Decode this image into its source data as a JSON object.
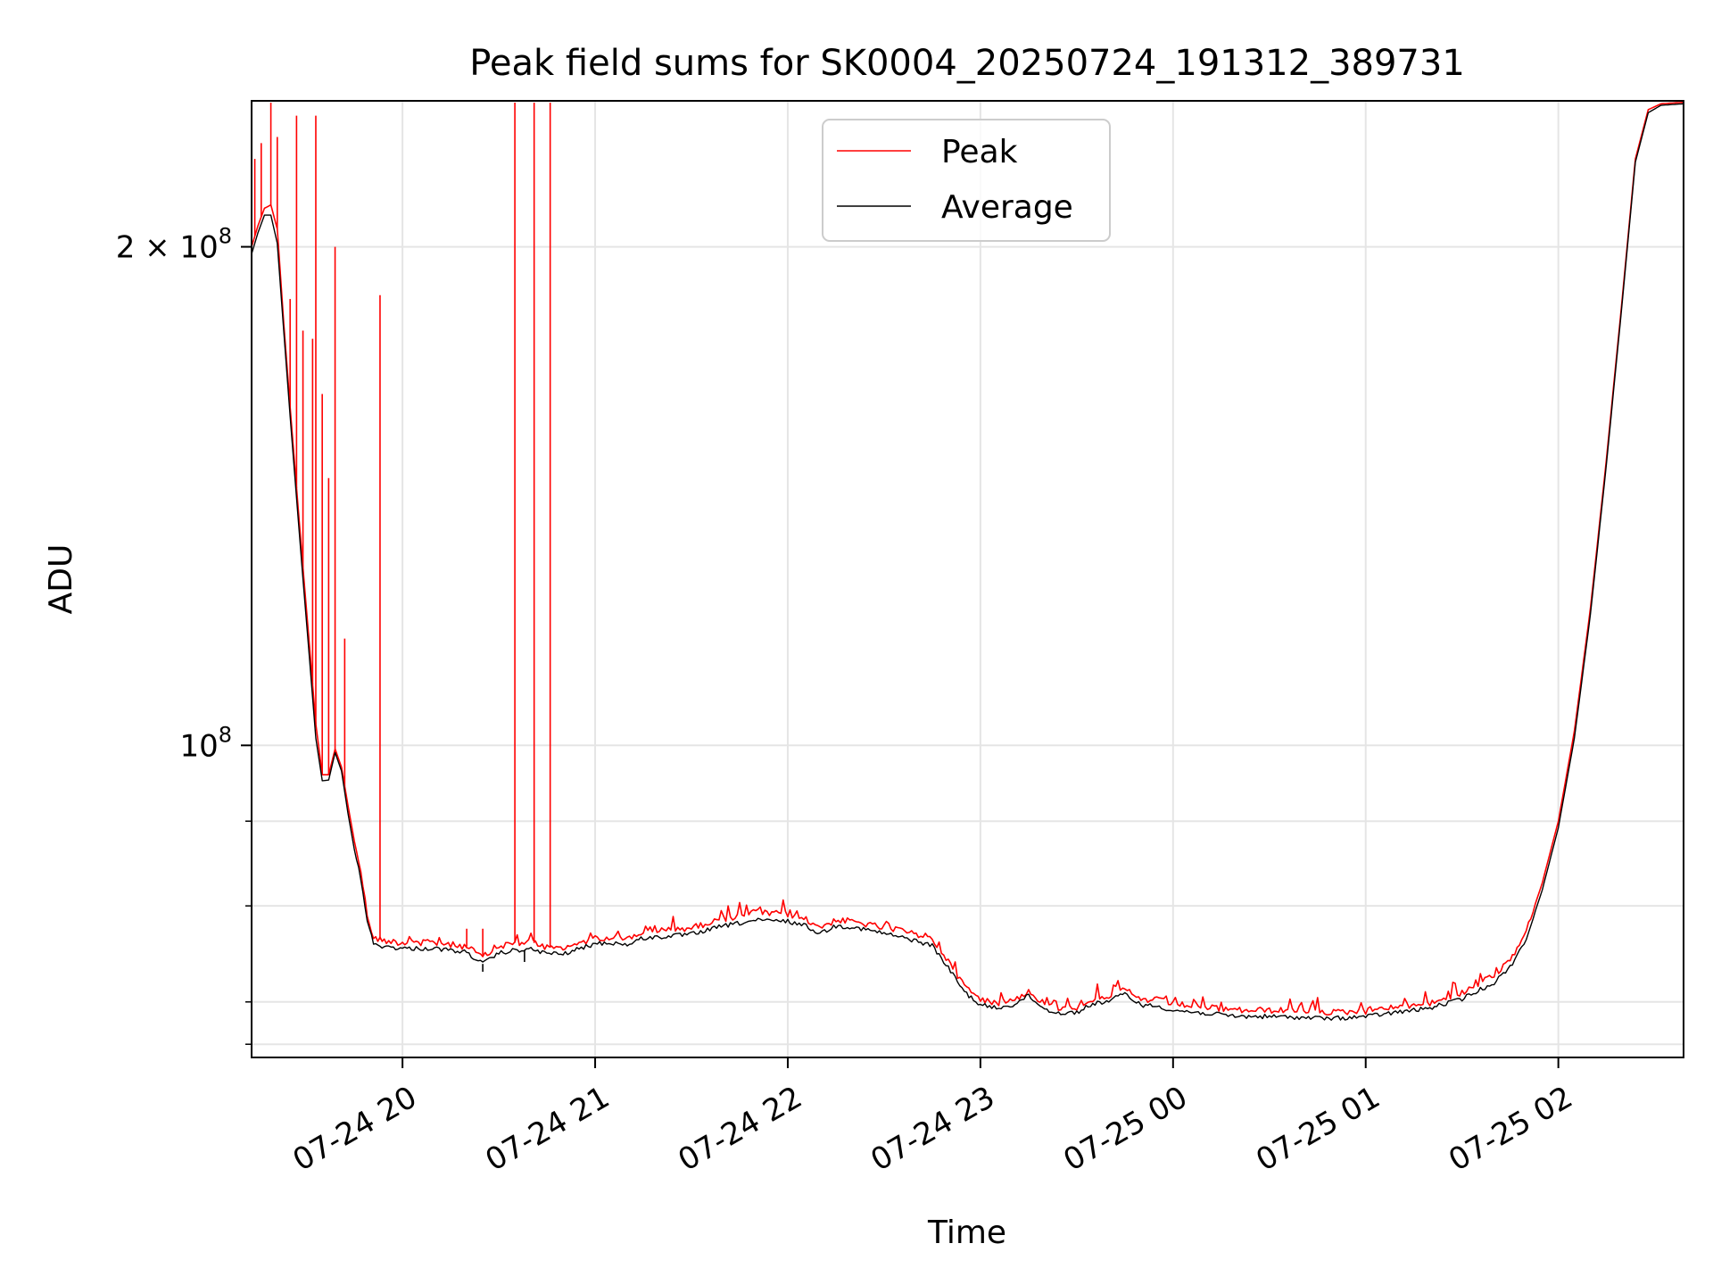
{
  "chart_data": {
    "type": "line",
    "title": "Peak field sums for SK0004_20250724_191312_389731",
    "xlabel": "Time",
    "ylabel": "ADU",
    "yscale": "log",
    "xlim": [
      "2025-07-24 19:13",
      "2025-07-25 02:39"
    ],
    "ylim": [
      64800000,
      245000000
    ],
    "grid": true,
    "legend_position": "upper-center",
    "x_ticks": [
      {
        "value": "2025-07-24 20:00",
        "label": "07-24 20"
      },
      {
        "value": "2025-07-24 21:00",
        "label": "07-24 21"
      },
      {
        "value": "2025-07-24 22:00",
        "label": "07-24 22"
      },
      {
        "value": "2025-07-24 23:00",
        "label": "07-24 23"
      },
      {
        "value": "2025-07-25 00:00",
        "label": "07-25 00"
      },
      {
        "value": "2025-07-25 01:00",
        "label": "07-25 01"
      },
      {
        "value": "2025-07-25 02:00",
        "label": "07-25 02"
      }
    ],
    "y_major_ticks": [
      {
        "value": 100000000,
        "label_base": "10",
        "label_exp": "8"
      },
      {
        "value": 200000000,
        "label_base": "2 × 10",
        "label_exp": "8"
      }
    ],
    "y_minor_ticks": [
      66000000,
      70000000,
      80000000,
      90000000
    ],
    "series": [
      {
        "name": "Peak",
        "color": "#ff0000",
        "points": [
          [
            "2025-07-24 19:13",
            200000000
          ],
          [
            "2025-07-24 19:15",
            206000000
          ],
          [
            "2025-07-24 19:17",
            211000000
          ],
          [
            "2025-07-24 19:19",
            212000000
          ],
          [
            "2025-07-24 19:21",
            205000000
          ],
          [
            "2025-07-24 19:23",
            180000000
          ],
          [
            "2025-07-24 19:25",
            160000000
          ],
          [
            "2025-07-24 19:27",
            143000000
          ],
          [
            "2025-07-24 19:29",
            128000000
          ],
          [
            "2025-07-24 19:31",
            115000000
          ],
          [
            "2025-07-24 19:33",
            103000000
          ],
          [
            "2025-07-24 19:35",
            96000000
          ],
          [
            "2025-07-24 19:37",
            96000000
          ],
          [
            "2025-07-24 19:39",
            99500000
          ],
          [
            "2025-07-24 19:41",
            97000000
          ],
          [
            "2025-07-24 19:43",
            92000000
          ],
          [
            "2025-07-24 19:45",
            87500000
          ],
          [
            "2025-07-24 19:47",
            84000000
          ],
          [
            "2025-07-24 19:49",
            79000000
          ],
          [
            "2025-07-24 19:51",
            76500000
          ],
          [
            "2025-07-24 19:55",
            76200000
          ],
          [
            "2025-07-24 20:00",
            76000000
          ],
          [
            "2025-07-24 20:10",
            76000000
          ],
          [
            "2025-07-24 20:20",
            75600000
          ],
          [
            "2025-07-24 20:25",
            74500000
          ],
          [
            "2025-07-24 20:30",
            75600000
          ],
          [
            "2025-07-24 20:35",
            76000000
          ],
          [
            "2025-07-24 20:40",
            76100000
          ],
          [
            "2025-07-24 20:45",
            75500000
          ],
          [
            "2025-07-24 20:50",
            75400000
          ],
          [
            "2025-07-24 21:00",
            76500000
          ],
          [
            "2025-07-24 21:05",
            76600000
          ],
          [
            "2025-07-24 21:10",
            76400000
          ],
          [
            "2025-07-24 21:15",
            77200000
          ],
          [
            "2025-07-24 21:20",
            77300000
          ],
          [
            "2025-07-24 21:30",
            77600000
          ],
          [
            "2025-07-24 21:40",
            78600000
          ],
          [
            "2025-07-24 21:50",
            79200000
          ],
          [
            "2025-07-24 22:00",
            79100000
          ],
          [
            "2025-07-24 22:05",
            78600000
          ],
          [
            "2025-07-24 22:10",
            77700000
          ],
          [
            "2025-07-24 22:15",
            78400000
          ],
          [
            "2025-07-24 22:20",
            78300000
          ],
          [
            "2025-07-24 22:30",
            77600000
          ],
          [
            "2025-07-24 22:40",
            76900000
          ],
          [
            "2025-07-24 22:45",
            76400000
          ],
          [
            "2025-07-24 22:50",
            74100000
          ],
          [
            "2025-07-24 22:55",
            71600000
          ],
          [
            "2025-07-24 23:00",
            70200000
          ],
          [
            "2025-07-24 23:05",
            69900000
          ],
          [
            "2025-07-24 23:10",
            70200000
          ],
          [
            "2025-07-24 23:15",
            71000000
          ],
          [
            "2025-07-24 23:20",
            69800000
          ],
          [
            "2025-07-24 23:25",
            69400000
          ],
          [
            "2025-07-24 23:30",
            69500000
          ],
          [
            "2025-07-24 23:35",
            70300000
          ],
          [
            "2025-07-24 23:40",
            70600000
          ],
          [
            "2025-07-24 23:45",
            71200000
          ],
          [
            "2025-07-24 23:50",
            70200000
          ],
          [
            "2025-07-24 23:55",
            70200000
          ],
          [
            "2025-07-25 00:00",
            69800000
          ],
          [
            "2025-07-25 00:10",
            69500000
          ],
          [
            "2025-07-25 00:20",
            69200000
          ],
          [
            "2025-07-25 00:30",
            69200000
          ],
          [
            "2025-07-25 00:40",
            69100000
          ],
          [
            "2025-07-25 00:50",
            69000000
          ],
          [
            "2025-07-25 01:00",
            69100000
          ],
          [
            "2025-07-25 01:10",
            69500000
          ],
          [
            "2025-07-25 01:20",
            69900000
          ],
          [
            "2025-07-25 01:30",
            70900000
          ],
          [
            "2025-07-25 01:40",
            72600000
          ],
          [
            "2025-07-25 01:45",
            74200000
          ],
          [
            "2025-07-25 01:50",
            77200000
          ],
          [
            "2025-07-25 01:55",
            82600000
          ],
          [
            "2025-07-25 02:00",
            90000000
          ],
          [
            "2025-07-25 02:05",
            102000000
          ],
          [
            "2025-07-25 02:10",
            121000000
          ],
          [
            "2025-07-25 02:15",
            149000000
          ],
          [
            "2025-07-25 02:20",
            187000000
          ],
          [
            "2025-07-25 02:24",
            226000000
          ],
          [
            "2025-07-25 02:28",
            242000000
          ],
          [
            "2025-07-25 02:32",
            244000000
          ],
          [
            "2025-07-25 02:39",
            244500000
          ]
        ],
        "spikes": [
          [
            "2025-07-24 19:14",
            226000000
          ],
          [
            "2025-07-24 19:16",
            231000000
          ],
          [
            "2025-07-24 19:19",
            245000000
          ],
          [
            "2025-07-24 19:21",
            233000000
          ],
          [
            "2025-07-24 19:25",
            186000000
          ],
          [
            "2025-07-24 19:27",
            240000000
          ],
          [
            "2025-07-24 19:29",
            178000000
          ],
          [
            "2025-07-24 19:32",
            176000000
          ],
          [
            "2025-07-24 19:33",
            240000000
          ],
          [
            "2025-07-24 19:35",
            163000000
          ],
          [
            "2025-07-24 19:37",
            145000000
          ],
          [
            "2025-07-24 19:39",
            200000000
          ],
          [
            "2025-07-24 19:42",
            116000000
          ],
          [
            "2025-07-24 19:53",
            187000000
          ],
          [
            "2025-07-24 20:20",
            77500000
          ],
          [
            "2025-07-24 20:25",
            77500000
          ],
          [
            "2025-07-24 20:35",
            245000000
          ],
          [
            "2025-07-24 20:41",
            245000000
          ],
          [
            "2025-07-24 20:46",
            245000000
          ]
        ]
      },
      {
        "name": "Average",
        "color": "#000000",
        "points": [
          [
            "2025-07-24 19:13",
            198000000
          ],
          [
            "2025-07-24 19:15",
            204000000
          ],
          [
            "2025-07-24 19:17",
            209000000
          ],
          [
            "2025-07-24 19:19",
            209000000
          ],
          [
            "2025-07-24 19:21",
            201000000
          ],
          [
            "2025-07-24 19:23",
            178000000
          ],
          [
            "2025-07-24 19:25",
            158000000
          ],
          [
            "2025-07-24 19:27",
            141000000
          ],
          [
            "2025-07-24 19:29",
            126000000
          ],
          [
            "2025-07-24 19:31",
            113000000
          ],
          [
            "2025-07-24 19:33",
            101000000
          ],
          [
            "2025-07-24 19:35",
            95200000
          ],
          [
            "2025-07-24 19:37",
            95300000
          ],
          [
            "2025-07-24 19:39",
            99000000
          ],
          [
            "2025-07-24 19:41",
            96500000
          ],
          [
            "2025-07-24 19:43",
            91000000
          ],
          [
            "2025-07-24 19:45",
            86500000
          ],
          [
            "2025-07-24 19:47",
            83000000
          ],
          [
            "2025-07-24 19:49",
            78500000
          ],
          [
            "2025-07-24 19:51",
            75800000
          ],
          [
            "2025-07-24 19:55",
            75600000
          ],
          [
            "2025-07-24 20:00",
            75400000
          ],
          [
            "2025-07-24 20:10",
            75400000
          ],
          [
            "2025-07-24 20:20",
            75000000
          ],
          [
            "2025-07-24 20:25",
            73800000
          ],
          [
            "2025-07-24 20:30",
            74900000
          ],
          [
            "2025-07-24 20:35",
            75200000
          ],
          [
            "2025-07-24 20:40",
            75300000
          ],
          [
            "2025-07-24 20:45",
            74900000
          ],
          [
            "2025-07-24 20:50",
            74800000
          ],
          [
            "2025-07-24 21:00",
            75900000
          ],
          [
            "2025-07-24 21:05",
            76000000
          ],
          [
            "2025-07-24 21:10",
            75800000
          ],
          [
            "2025-07-24 21:15",
            76500000
          ],
          [
            "2025-07-24 21:20",
            76600000
          ],
          [
            "2025-07-24 21:30",
            76900000
          ],
          [
            "2025-07-24 21:40",
            77800000
          ],
          [
            "2025-07-24 21:50",
            78400000
          ],
          [
            "2025-07-24 22:00",
            78300000
          ],
          [
            "2025-07-24 22:05",
            77900000
          ],
          [
            "2025-07-24 22:10",
            77000000
          ],
          [
            "2025-07-24 22:15",
            77800000
          ],
          [
            "2025-07-24 22:20",
            77700000
          ],
          [
            "2025-07-24 22:30",
            77000000
          ],
          [
            "2025-07-24 22:40",
            76200000
          ],
          [
            "2025-07-24 22:45",
            75700000
          ],
          [
            "2025-07-24 22:50",
            73400000
          ],
          [
            "2025-07-24 22:55",
            71000000
          ],
          [
            "2025-07-24 23:00",
            69700000
          ],
          [
            "2025-07-24 23:05",
            69400000
          ],
          [
            "2025-07-24 23:10",
            69700000
          ],
          [
            "2025-07-24 23:15",
            70600000
          ],
          [
            "2025-07-24 23:20",
            69300000
          ],
          [
            "2025-07-24 23:25",
            68900000
          ],
          [
            "2025-07-24 23:30",
            69000000
          ],
          [
            "2025-07-24 23:35",
            69800000
          ],
          [
            "2025-07-24 23:40",
            70100000
          ],
          [
            "2025-07-24 23:45",
            70800000
          ],
          [
            "2025-07-24 23:50",
            69700000
          ],
          [
            "2025-07-24 23:55",
            69600000
          ],
          [
            "2025-07-25 00:00",
            69200000
          ],
          [
            "2025-07-25 00:10",
            68900000
          ],
          [
            "2025-07-25 00:20",
            68600000
          ],
          [
            "2025-07-25 00:30",
            68600000
          ],
          [
            "2025-07-25 00:40",
            68500000
          ],
          [
            "2025-07-25 00:50",
            68400000
          ],
          [
            "2025-07-25 01:00",
            68600000
          ],
          [
            "2025-07-25 01:10",
            69000000
          ],
          [
            "2025-07-25 01:20",
            69400000
          ],
          [
            "2025-07-25 01:30",
            70300000
          ],
          [
            "2025-07-25 01:40",
            71900000
          ],
          [
            "2025-07-25 01:45",
            73500000
          ],
          [
            "2025-07-25 01:50",
            76400000
          ],
          [
            "2025-07-25 01:55",
            81800000
          ],
          [
            "2025-07-25 02:00",
            89200000
          ],
          [
            "2025-07-25 02:05",
            101000000
          ],
          [
            "2025-07-25 02:10",
            120000000
          ],
          [
            "2025-07-25 02:15",
            148000000
          ],
          [
            "2025-07-25 02:20",
            186000000
          ],
          [
            "2025-07-25 02:24",
            225000000
          ],
          [
            "2025-07-25 02:28",
            241000000
          ],
          [
            "2025-07-25 02:32",
            243500000
          ],
          [
            "2025-07-25 02:39",
            244000000
          ]
        ],
        "spikes": [
          [
            "2025-07-24 20:25",
            73000000
          ],
          [
            "2025-07-24 20:38",
            74000000
          ]
        ]
      }
    ]
  }
}
